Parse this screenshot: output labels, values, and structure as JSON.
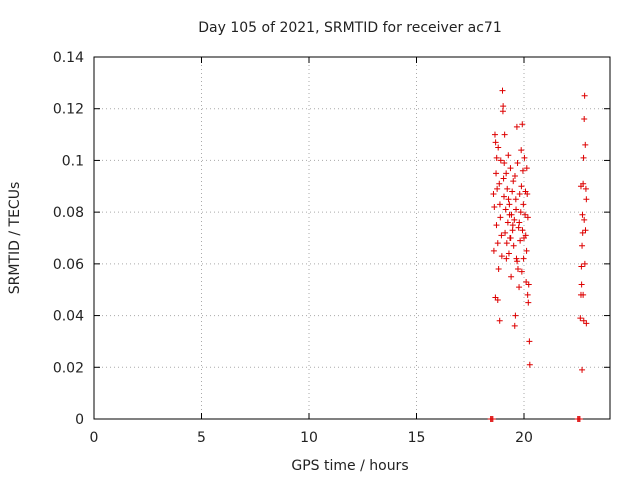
{
  "chart_data": {
    "type": "scatter",
    "title": "Day 105 of 2021, SRMTID for receiver ac71",
    "xlabel": "GPS time / hours",
    "ylabel": "SRMTID / TECUs",
    "xlim": [
      0,
      24
    ],
    "ylim": [
      0,
      0.14
    ],
    "x_ticks": [
      0,
      5,
      10,
      15,
      20
    ],
    "x_tick_labels": [
      "0",
      "5",
      "10",
      "15",
      "20"
    ],
    "y_ticks": [
      0,
      0.02,
      0.04,
      0.06,
      0.08,
      0.1,
      0.12,
      0.14
    ],
    "y_tick_labels": [
      "0",
      "0.02",
      "0.04",
      "0.06",
      "0.08",
      "0.1",
      "0.12",
      "0.14"
    ],
    "grid": true,
    "legend": "none",
    "marker": "plus",
    "color": "#dd0000",
    "series": [
      {
        "points": [
          [
            18.45,
            0.0
          ],
          [
            18.5,
            0.0
          ],
          [
            18.55,
            0.0
          ],
          [
            18.6,
            0.065
          ],
          [
            18.62,
            0.082
          ],
          [
            18.65,
            0.11
          ],
          [
            18.67,
            0.047
          ],
          [
            18.7,
            0.095
          ],
          [
            18.72,
            0.075
          ],
          [
            18.75,
            0.089
          ],
          [
            18.78,
            0.068
          ],
          [
            18.8,
            0.105
          ],
          [
            18.82,
            0.058
          ],
          [
            18.85,
            0.091
          ],
          [
            18.87,
            0.038
          ],
          [
            18.9,
            0.078
          ],
          [
            18.92,
            0.1
          ],
          [
            18.95,
            0.071
          ],
          [
            18.97,
            0.063
          ],
          [
            19.0,
            0.127
          ],
          [
            19.02,
            0.119
          ],
          [
            19.05,
            0.093
          ],
          [
            19.07,
            0.086
          ],
          [
            19.1,
            0.11
          ],
          [
            19.12,
            0.072
          ],
          [
            19.15,
            0.081
          ],
          [
            19.17,
            0.095
          ],
          [
            19.2,
            0.068
          ],
          [
            19.22,
            0.089
          ],
          [
            19.25,
            0.076
          ],
          [
            19.27,
            0.102
          ],
          [
            19.3,
            0.064
          ],
          [
            19.32,
            0.083
          ],
          [
            19.35,
            0.07
          ],
          [
            19.37,
            0.097
          ],
          [
            19.4,
            0.055
          ],
          [
            19.42,
            0.079
          ],
          [
            19.45,
            0.088
          ],
          [
            19.47,
            0.073
          ],
          [
            19.5,
            0.092
          ],
          [
            19.52,
            0.067
          ],
          [
            19.55,
            0.077
          ],
          [
            19.57,
            0.036
          ],
          [
            19.6,
            0.04
          ],
          [
            19.62,
            0.085
          ],
          [
            19.65,
            0.062
          ],
          [
            19.67,
            0.113
          ],
          [
            19.7,
            0.099
          ],
          [
            19.72,
            0.058
          ],
          [
            19.75,
            0.074
          ],
          [
            19.77,
            0.051
          ],
          [
            19.8,
            0.087
          ],
          [
            19.82,
            0.069
          ],
          [
            19.85,
            0.08
          ],
          [
            19.87,
            0.104
          ],
          [
            19.9,
            0.057
          ],
          [
            19.92,
            0.114
          ],
          [
            19.95,
            0.096
          ],
          [
            19.97,
            0.083
          ],
          [
            20.0,
            0.07
          ],
          [
            20.02,
            0.101
          ],
          [
            20.05,
            0.079
          ],
          [
            20.07,
            0.088
          ],
          [
            20.1,
            0.053
          ],
          [
            20.12,
            0.065
          ],
          [
            20.15,
            0.087
          ],
          [
            20.17,
            0.048
          ],
          [
            20.2,
            0.045
          ],
          [
            20.22,
            0.052
          ],
          [
            20.25,
            0.03
          ],
          [
            20.27,
            0.021
          ],
          [
            18.68,
            0.107
          ],
          [
            18.88,
            0.083
          ],
          [
            19.08,
            0.099
          ],
          [
            19.28,
            0.085
          ],
          [
            19.48,
            0.075
          ],
          [
            19.68,
            0.061
          ],
          [
            19.88,
            0.09
          ],
          [
            20.08,
            0.071
          ],
          [
            18.58,
            0.087
          ],
          [
            18.78,
            0.046
          ],
          [
            19.18,
            0.062
          ],
          [
            19.38,
            0.07
          ],
          [
            19.58,
            0.094
          ],
          [
            19.78,
            0.076
          ],
          [
            19.98,
            0.062
          ],
          [
            20.18,
            0.078
          ],
          [
            18.73,
            0.101
          ],
          [
            19.03,
            0.121
          ],
          [
            19.33,
            0.079
          ],
          [
            19.63,
            0.081
          ],
          [
            19.93,
            0.073
          ],
          [
            20.13,
            0.097
          ],
          [
            22.5,
            0.0
          ],
          [
            22.55,
            0.0
          ],
          [
            22.6,
            0.0
          ],
          [
            22.62,
            0.039
          ],
          [
            22.65,
            0.048
          ],
          [
            22.67,
            0.059
          ],
          [
            22.7,
            0.067
          ],
          [
            22.72,
            0.079
          ],
          [
            22.75,
            0.091
          ],
          [
            22.77,
            0.101
          ],
          [
            22.8,
            0.116
          ],
          [
            22.82,
            0.125
          ],
          [
            22.85,
            0.106
          ],
          [
            22.88,
            0.089
          ],
          [
            22.9,
            0.085
          ],
          [
            22.68,
            0.052
          ],
          [
            22.73,
            0.072
          ],
          [
            22.78,
            0.038
          ],
          [
            22.83,
            0.06
          ],
          [
            22.86,
            0.073
          ],
          [
            22.7,
            0.019
          ],
          [
            22.8,
            0.077
          ],
          [
            22.75,
            0.048
          ],
          [
            22.9,
            0.037
          ],
          [
            22.65,
            0.09
          ]
        ]
      }
    ]
  }
}
